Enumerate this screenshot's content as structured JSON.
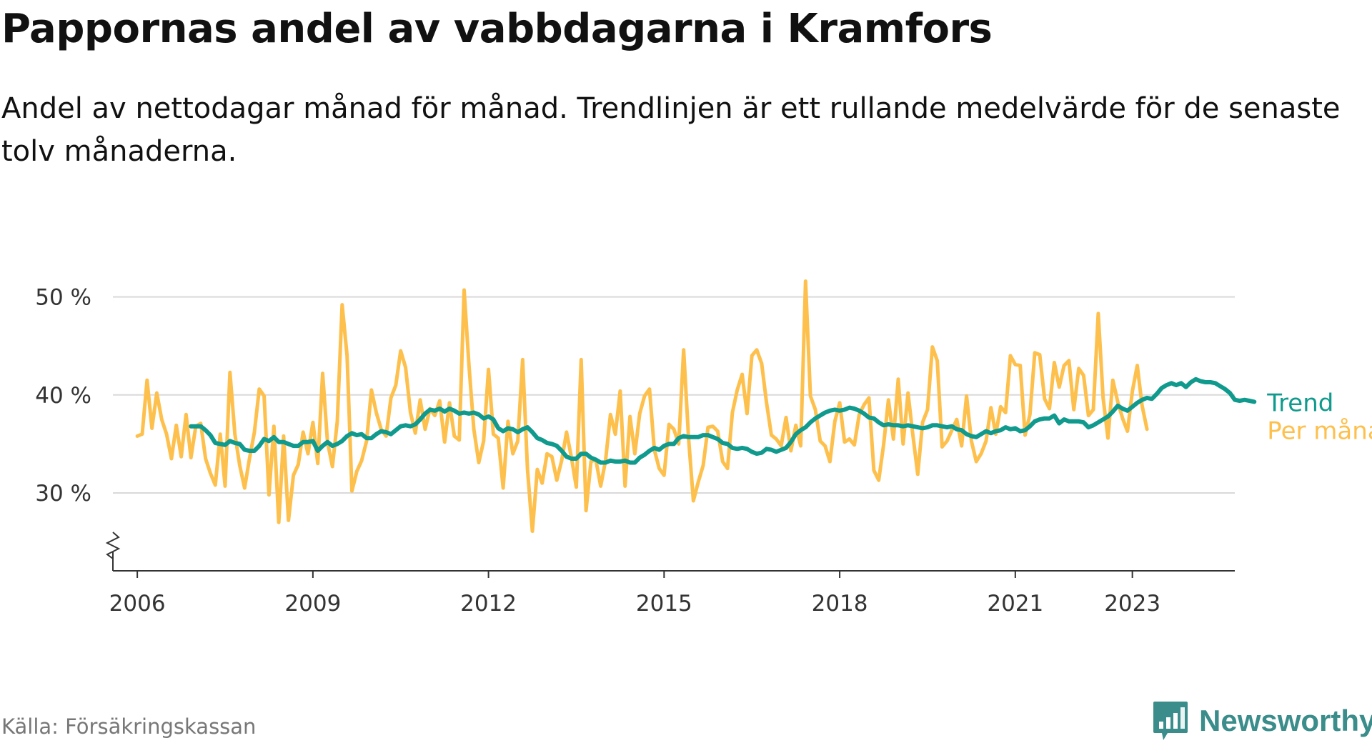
{
  "title": "Pappornas andel av vabbdagarna i Kramfors",
  "subtitle": "Andel av nettodagar månad för månad. Trendlinjen är ett rullande medelvärde för de senaste tolv månaderna.",
  "source": "Källa: Försäkringskassan",
  "brand": "Newsworthy",
  "colors": {
    "trend": "#0f9a8d",
    "monthly": "#fec04d",
    "grid": "#d9d9d9",
    "axis": "#333333",
    "brand": "#3a8d8a"
  },
  "chart_data": {
    "type": "line",
    "x_axis_type": "date",
    "x_ticks": [
      "2006",
      "2009",
      "2012",
      "2015",
      "2018",
      "2021",
      "2023"
    ],
    "y_ticks": [
      30,
      40,
      50
    ],
    "y_tick_labels": [
      "30 %",
      "40 %",
      "50 %"
    ],
    "ylim": [
      22.5,
      52
    ],
    "y_axis_break": true,
    "grid": "horizontal",
    "legend": "inline-right",
    "series": [
      {
        "name": "Per månad",
        "color": "#fec04d",
        "start": "2006-01",
        "values": [
          35.8,
          36,
          41.5,
          36.6,
          40.2,
          37.5,
          36,
          33.5,
          36.9,
          33.7,
          38,
          33.6,
          36.8,
          37.1,
          33.5,
          32,
          30.8,
          36,
          30.7,
          42.3,
          36,
          32.8,
          30.5,
          33.5,
          36.2,
          40.6,
          39.9,
          29.8,
          36.8,
          27,
          35.8,
          27.2,
          31.8,
          32.9,
          36.2,
          34,
          37.2,
          33,
          42.2,
          35.2,
          32.7,
          37.3,
          49.2,
          44,
          30.2,
          32.2,
          33.3,
          35.3,
          40.5,
          38.2,
          36.5,
          35.8,
          39.7,
          41,
          44.5,
          42.8,
          38.2,
          36.1,
          39.5,
          36.5,
          38.6,
          37.9,
          39.4,
          35.2,
          39.2,
          35.8,
          35.4,
          50.7,
          43,
          36.5,
          33.1,
          35.3,
          42.6,
          36,
          35.6,
          30.5,
          37.3,
          34,
          35.3,
          43.6,
          32.4,
          26.1,
          32.4,
          31,
          34,
          33.7,
          31.3,
          33.3,
          36.2,
          33.6,
          30.6,
          43.6,
          28.2,
          33.2,
          33.4,
          30.7,
          33.3,
          38,
          36,
          40.4,
          30.7,
          37.8,
          34,
          38.1,
          39.9,
          40.6,
          34.4,
          32.5,
          31.8,
          37,
          36.5,
          35,
          44.6,
          35.7,
          29.2,
          31.1,
          32.8,
          36.7,
          36.8,
          36.3,
          33.2,
          32.5,
          38.2,
          40.5,
          42.1,
          38.1,
          44,
          44.6,
          43.2,
          39.2,
          35.9,
          35.5,
          34.8,
          37.7,
          34.3,
          36.9,
          34.8,
          51.6,
          39.9,
          38.5,
          35.3,
          34.8,
          33.2,
          37.3,
          39.2,
          35.2,
          35.5,
          34.9,
          38,
          39,
          39.7,
          32.3,
          31.3,
          34.9,
          39.5,
          35.5,
          41.6,
          35,
          40.2,
          35.9,
          31.9,
          37.2,
          38.5,
          44.9,
          43.5,
          34.7,
          35.3,
          36.4,
          37.5,
          34.8,
          39.9,
          35.3,
          33.2,
          34,
          35.3,
          38.7,
          36,
          38.8,
          38.2,
          44,
          43.1,
          43,
          35.9,
          38,
          44.3,
          44.1,
          39.6,
          38.6,
          43.3,
          40.8,
          43,
          43.5,
          38.5,
          42.7,
          42,
          37.9,
          38.5,
          48.3,
          39.7,
          35.6,
          41.5,
          39.3,
          37.6,
          36.3,
          40.4,
          43,
          38.9,
          36.5
        ]
      },
      {
        "name": "Trend",
        "color": "#0f9a8d",
        "start": "2006-12",
        "values": [
          36.8,
          36.8,
          36.8,
          36.4,
          35.9,
          35.1,
          35,
          34.9,
          35.3,
          35.1,
          35,
          34.4,
          34.3,
          34.3,
          34.8,
          35.5,
          35.3,
          35.7,
          35.2,
          35.2,
          35,
          34.8,
          34.8,
          35.2,
          35.2,
          35.3,
          34.3,
          34.8,
          35.2,
          34.8,
          35,
          35.3,
          35.8,
          36.1,
          35.9,
          36,
          35.6,
          35.6,
          36,
          36.3,
          36.2,
          36,
          36.4,
          36.8,
          36.9,
          36.8,
          37,
          37.5,
          38.1,
          38.5,
          38.4,
          38.6,
          38.3,
          38.6,
          38.4,
          38.1,
          38.2,
          38.1,
          38.2,
          38,
          37.6,
          37.8,
          37.5,
          36.6,
          36.3,
          36.6,
          36.5,
          36.2,
          36.5,
          36.7,
          36.2,
          35.6,
          35.4,
          35.1,
          35,
          34.8,
          34.3,
          33.7,
          33.5,
          33.5,
          34,
          34,
          33.6,
          33.4,
          33.1,
          33.1,
          33.3,
          33.2,
          33.2,
          33.3,
          33.1,
          33.1,
          33.6,
          33.9,
          34.3,
          34.6,
          34.4,
          34.8,
          35,
          35,
          35.6,
          35.8,
          35.7,
          35.7,
          35.7,
          35.9,
          35.9,
          35.7,
          35.5,
          35.1,
          35,
          34.6,
          34.5,
          34.6,
          34.5,
          34.2,
          34,
          34.1,
          34.5,
          34.4,
          34.2,
          34.4,
          34.6,
          35.2,
          36,
          36.4,
          36.7,
          37.2,
          37.6,
          37.9,
          38.2,
          38.4,
          38.5,
          38.4,
          38.5,
          38.7,
          38.6,
          38.4,
          38.1,
          37.7,
          37.6,
          37.2,
          36.9,
          37,
          36.9,
          36.9,
          36.8,
          36.9,
          36.8,
          36.7,
          36.6,
          36.7,
          36.9,
          36.9,
          36.8,
          36.7,
          36.8,
          36.5,
          36.4,
          36,
          35.8,
          35.7,
          36,
          36.3,
          36.1,
          36.3,
          36.4,
          36.7,
          36.5,
          36.6,
          36.3,
          36.4,
          36.8,
          37.3,
          37.5,
          37.6,
          37.6,
          37.9,
          37.1,
          37.5,
          37.3,
          37.3,
          37.3,
          37.2,
          36.7,
          36.9,
          37.2,
          37.5,
          37.8,
          38.3,
          38.9,
          38.6,
          38.4,
          38.8,
          39.2,
          39.5,
          39.7,
          39.6,
          40.1,
          40.7,
          41,
          41.2,
          41,
          41.2,
          40.8,
          41.3,
          41.6,
          41.4,
          41.3,
          41.3,
          41.2,
          40.9,
          40.6,
          40.2,
          39.5,
          39.4,
          39.5,
          39.4,
          39.3
        ]
      }
    ]
  }
}
